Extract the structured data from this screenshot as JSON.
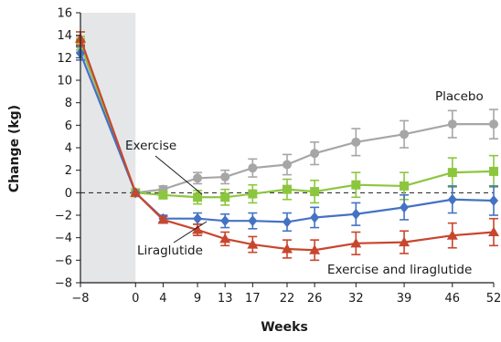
{
  "chart_data": {
    "type": "line",
    "xlabel": "Weeks",
    "ylabel": "Change (kg)",
    "xlim": [
      -8,
      52
    ],
    "ylim": [
      -8,
      16
    ],
    "x_ticks": [
      -8,
      0,
      4,
      9,
      13,
      17,
      22,
      26,
      32,
      39,
      46,
      52
    ],
    "x_tick_labels": [
      "−8",
      "0",
      "4",
      "9",
      "13",
      "17",
      "22",
      "26",
      "32",
      "39",
      "46",
      "52"
    ],
    "y_ticks": [
      -8,
      -6,
      -4,
      -2,
      0,
      2,
      4,
      6,
      8,
      10,
      12,
      14,
      16
    ],
    "y_tick_labels": [
      "−8",
      "−6",
      "−4",
      "−2",
      "0",
      "2",
      "4",
      "6",
      "8",
      "10",
      "12",
      "14",
      "16"
    ],
    "shaded_region": [
      -8,
      0
    ],
    "reference_line_y": 0,
    "grid": false,
    "series": [
      {
        "name": "Placebo",
        "color": "#a6a6a6",
        "marker": "circle",
        "x": [
          -8,
          0,
          4,
          9,
          13,
          17,
          22,
          26,
          32,
          39,
          46,
          52
        ],
        "y": [
          13.1,
          0,
          0.3,
          1.3,
          1.4,
          2.2,
          2.5,
          3.5,
          4.5,
          5.2,
          6.1,
          6.1
        ],
        "err": [
          0.6,
          0,
          0.3,
          0.5,
          0.6,
          0.8,
          0.9,
          1.0,
          1.2,
          1.2,
          1.2,
          1.3
        ]
      },
      {
        "name": "Exercise",
        "color": "#8cc63f",
        "marker": "square",
        "x": [
          -8,
          0,
          4,
          9,
          13,
          17,
          22,
          26,
          32,
          39,
          46,
          52
        ],
        "y": [
          13.3,
          0,
          -0.2,
          -0.4,
          -0.4,
          -0.1,
          0.3,
          0.1,
          0.7,
          0.6,
          1.8,
          1.9
        ],
        "err": [
          0.6,
          0,
          0.3,
          0.6,
          0.7,
          0.8,
          0.9,
          1.0,
          1.1,
          1.2,
          1.3,
          1.4
        ]
      },
      {
        "name": "Liraglutide",
        "color": "#4472c4",
        "marker": "diamond",
        "x": [
          -8,
          0,
          4,
          9,
          13,
          17,
          22,
          26,
          32,
          39,
          46,
          52
        ],
        "y": [
          12.4,
          0,
          -2.3,
          -2.3,
          -2.5,
          -2.5,
          -2.6,
          -2.2,
          -1.9,
          -1.3,
          -0.6,
          -0.7
        ],
        "err": [
          0.6,
          0,
          0.3,
          0.5,
          0.6,
          0.7,
          0.8,
          0.9,
          1.0,
          1.1,
          1.2,
          1.3
        ]
      },
      {
        "name": "Exercise and liraglutide",
        "color": "#c8462e",
        "marker": "triangle",
        "x": [
          -8,
          0,
          4,
          9,
          13,
          17,
          22,
          26,
          32,
          39,
          46,
          52
        ],
        "y": [
          13.7,
          0,
          -2.4,
          -3.3,
          -4.1,
          -4.6,
          -5.0,
          -5.1,
          -4.5,
          -4.4,
          -3.8,
          -3.5
        ],
        "err": [
          0.6,
          0,
          0.3,
          0.5,
          0.6,
          0.7,
          0.8,
          0.9,
          1.0,
          1.0,
          1.1,
          1.2
        ]
      }
    ]
  }
}
